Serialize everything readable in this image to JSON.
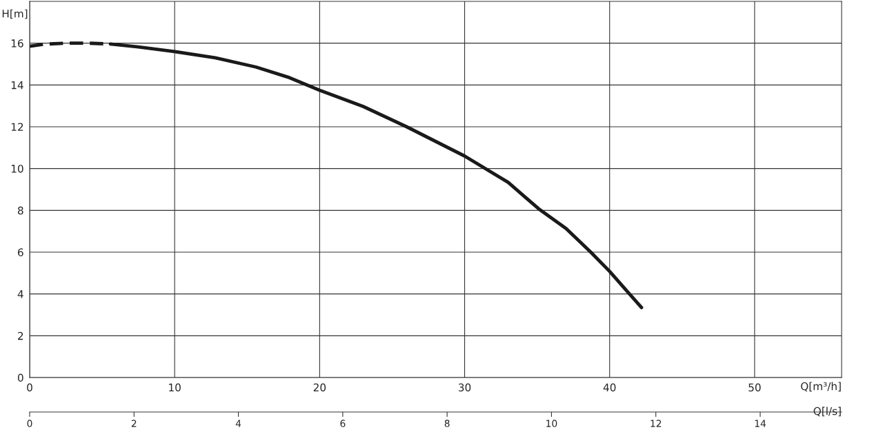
{
  "chart_data": {
    "type": "line",
    "xlabel": "Q[m³/h]",
    "ylabel": "H[m]",
    "x2label": "Q[l/s]",
    "xlim": [
      0,
      56
    ],
    "xticks": [
      0,
      10,
      20,
      30,
      40,
      50
    ],
    "ylim": [
      0,
      18
    ],
    "yticks": [
      0,
      2,
      4,
      6,
      8,
      10,
      12,
      14,
      16
    ],
    "x2lim": [
      0,
      15.56
    ],
    "x2ticks": [
      0,
      2,
      4,
      6,
      8,
      10,
      12,
      14
    ],
    "grid": true,
    "marker": "none",
    "series": [
      {
        "color": "#1a1a1a",
        "line_style": "dashed",
        "x": [
          0,
          1,
          2.5,
          4,
          5.57
        ],
        "values": [
          15.85,
          15.95,
          16.0,
          16.0,
          15.96
        ]
      },
      {
        "color": "#1a1a1a",
        "line_style": "solid",
        "x": [
          5.57,
          7.5,
          10,
          12.8,
          15.6,
          17.8,
          20,
          23,
          26,
          30,
          33,
          35.1,
          37,
          38.7,
          40,
          41.2,
          42.2
        ],
        "values": [
          15.96,
          15.82,
          15.6,
          15.3,
          14.86,
          14.38,
          13.75,
          12.97,
          12.0,
          10.6,
          9.34,
          8.08,
          7.13,
          6.0,
          5.08,
          4.13,
          3.35
        ]
      }
    ]
  }
}
